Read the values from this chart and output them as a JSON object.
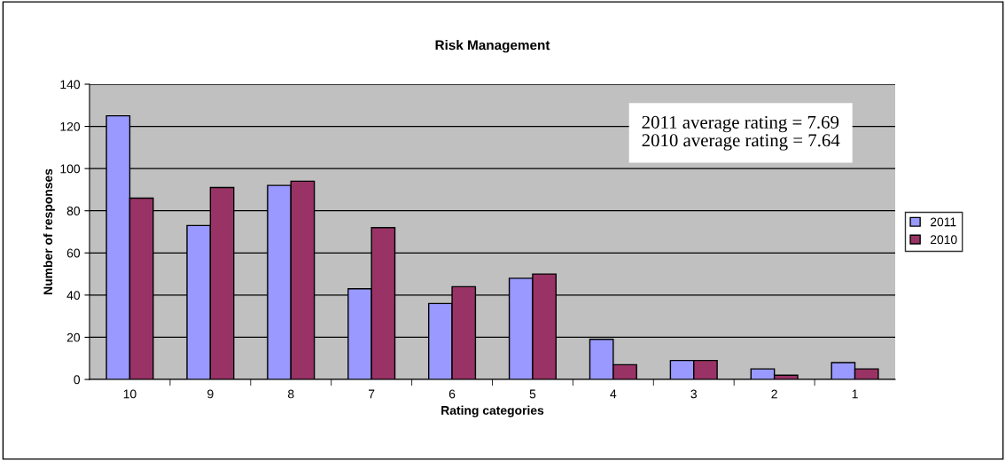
{
  "chart_data": {
    "type": "bar",
    "title": "Risk Management",
    "xlabel": "Rating categories",
    "ylabel": "Number of responses",
    "categories": [
      "10",
      "9",
      "8",
      "7",
      "6",
      "5",
      "4",
      "3",
      "2",
      "1"
    ],
    "series": [
      {
        "name": "2011",
        "color": "#9999ff",
        "values": [
          125,
          73,
          92,
          43,
          36,
          48,
          19,
          9,
          5,
          8
        ]
      },
      {
        "name": "2010",
        "color": "#993366",
        "values": [
          86,
          91,
          94,
          72,
          44,
          50,
          7,
          9,
          2,
          5
        ]
      }
    ],
    "ylim": [
      0,
      140
    ],
    "yticks": [
      0,
      20,
      40,
      60,
      80,
      100,
      120,
      140
    ],
    "grid": "y",
    "legend": "right",
    "annotations": [
      "2011 average rating = 7.69",
      "2010 average rating = 7.64"
    ]
  }
}
